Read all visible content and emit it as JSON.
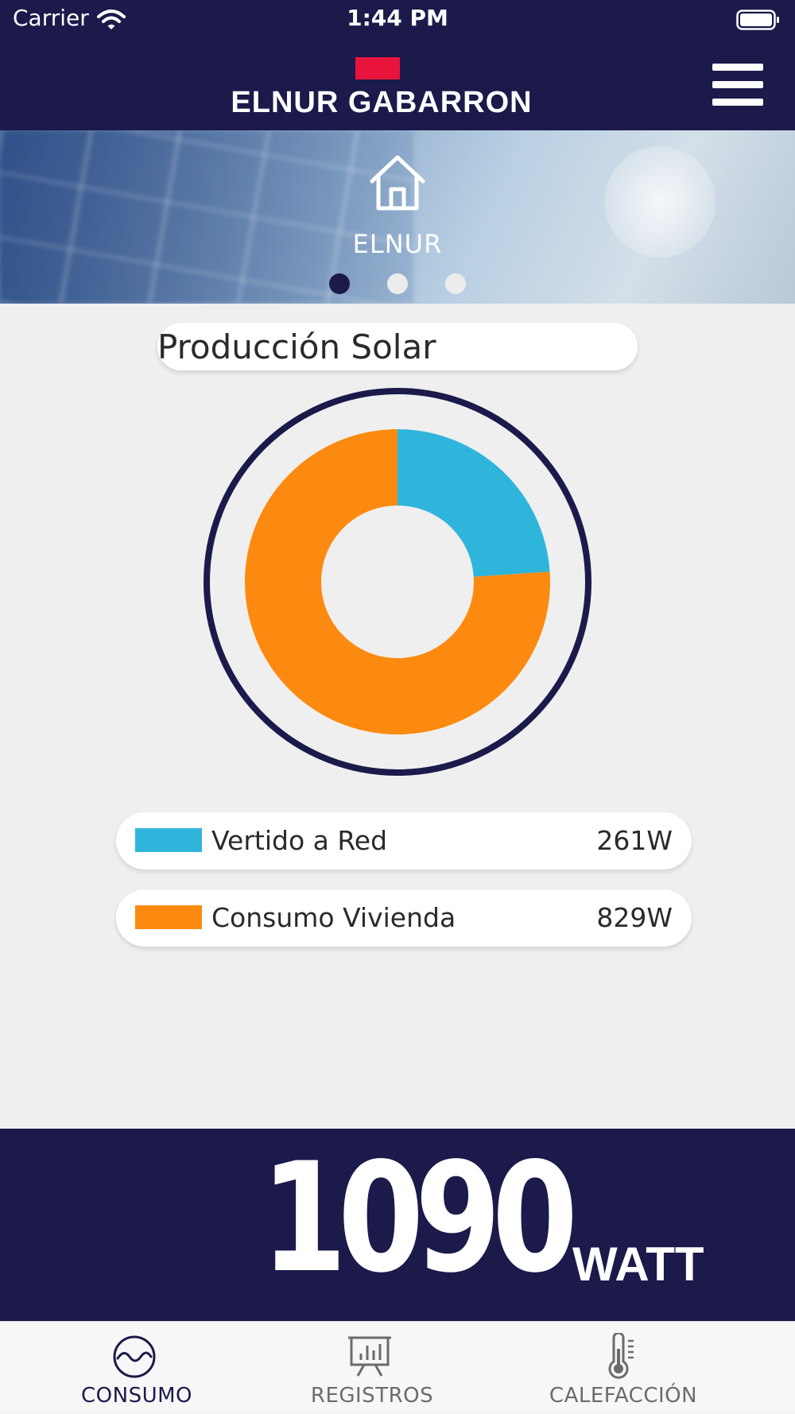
{
  "status_bar": {
    "carrier": "Carrier",
    "time": "1:44 PM"
  },
  "header": {
    "logo_text": "ELNUR GABARRON",
    "brand_red": "#e8143c",
    "background": "#1b1a4b"
  },
  "banner": {
    "home_label": "ELNUR",
    "icon": "home-icon",
    "pages": 3,
    "active_page": 1
  },
  "main": {
    "title": "Producción Solar"
  },
  "chart_data": {
    "type": "pie",
    "categories": [
      "Vertido a Red",
      "Consumo Vivienda"
    ],
    "values": [
      261,
      829
    ],
    "colors": [
      "#2fb5dc",
      "#fd8a10"
    ],
    "donut": true,
    "unit": "W"
  },
  "legend": {
    "items": [
      {
        "label": "Vertido a Red",
        "value": "261W",
        "color": "#2fb5dc"
      },
      {
        "label": "Consumo Vivienda",
        "value": "829W",
        "color": "#fd8a10"
      }
    ]
  },
  "total": {
    "value": "1090",
    "unit": "WATT"
  },
  "tabs": [
    {
      "label": "CONSUMO",
      "icon": "wave-icon",
      "active": true
    },
    {
      "label": "REGISTROS",
      "icon": "presentation-chart-icon",
      "active": false
    },
    {
      "label": "CALEFACCIÓN",
      "icon": "thermometer-icon",
      "active": false
    }
  ],
  "colors": {
    "navy": "#1b1a4b",
    "tab_inactive": "#6e6a6a",
    "tab_active": "#1b1a4b"
  }
}
